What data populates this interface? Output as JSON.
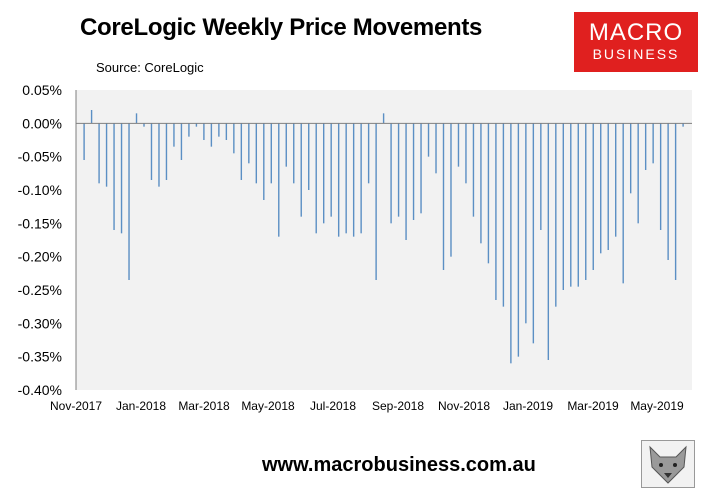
{
  "title": "CoreLogic Weekly Price Movements",
  "source": "Source: CoreLogic",
  "logo": {
    "line1": "MACRO",
    "line2": "BUSINESS"
  },
  "footer_url": "www.macrobusiness.com.au",
  "colors": {
    "bar": "#5b8fc4",
    "plot_bg": "#f2f2f2",
    "logo_bg": "#e0201f",
    "grid": "#d9d9d9"
  },
  "wolf_icon": "wolf-head-icon",
  "chart_data": {
    "type": "bar",
    "title": "CoreLogic Weekly Price Movements",
    "xlabel": "",
    "ylabel": "",
    "ylim": [
      -0.4,
      0.05
    ],
    "y_tick_labels": [
      "0.05%",
      "0.00%",
      "-0.05%",
      "-0.10%",
      "-0.15%",
      "-0.20%",
      "-0.25%",
      "-0.30%",
      "-0.35%",
      "-0.40%"
    ],
    "x_tick_labels": [
      "Nov-2017",
      "Jan-2018",
      "Mar-2018",
      "May-2018",
      "Jul-2018",
      "Sep-2018",
      "Nov-2018",
      "Jan-2019",
      "Mar-2019",
      "May-2019"
    ],
    "grid": "horizontal-zero-line",
    "legend": "none",
    "values": [
      -0.055,
      0.02,
      -0.09,
      -0.095,
      -0.16,
      -0.165,
      -0.235,
      0.015,
      -0.005,
      -0.085,
      -0.095,
      -0.085,
      -0.035,
      -0.055,
      -0.02,
      -0.005,
      -0.025,
      -0.035,
      -0.02,
      -0.025,
      -0.045,
      -0.085,
      -0.06,
      -0.09,
      -0.115,
      -0.09,
      -0.17,
      -0.065,
      -0.09,
      -0.14,
      -0.1,
      -0.165,
      -0.15,
      -0.14,
      -0.17,
      -0.165,
      -0.17,
      -0.165,
      -0.09,
      -0.235,
      0.015,
      -0.15,
      -0.14,
      -0.175,
      -0.145,
      -0.135,
      -0.05,
      -0.075,
      -0.22,
      -0.2,
      -0.065,
      -0.09,
      -0.14,
      -0.18,
      -0.21,
      -0.265,
      -0.275,
      -0.36,
      -0.35,
      -0.3,
      -0.33,
      -0.16,
      -0.355,
      -0.275,
      -0.25,
      -0.245,
      -0.245,
      -0.235,
      -0.22,
      -0.195,
      -0.19,
      -0.17,
      -0.24,
      -0.105,
      -0.15,
      -0.07,
      -0.06,
      -0.16,
      -0.205,
      -0.235,
      -0.005
    ]
  }
}
